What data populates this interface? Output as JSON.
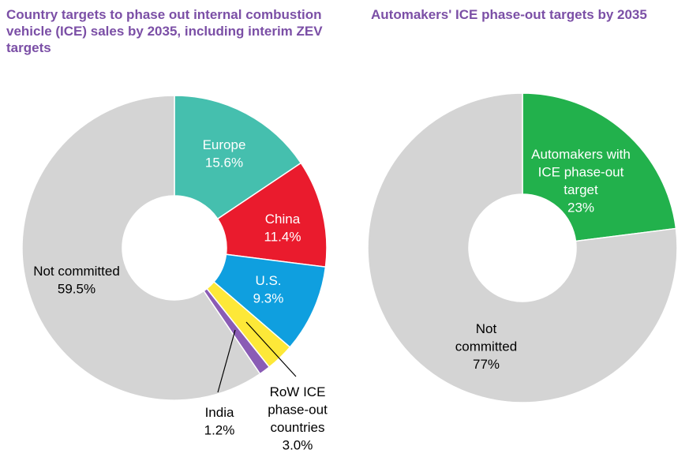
{
  "colors": {
    "title": "#7b4fa6",
    "europe": "#45bfae",
    "china": "#ea1b2d",
    "us": "#0f9fdf",
    "row": "#fde838",
    "india": "#8a5cb5",
    "not_committed": "#d4d4d4",
    "automakers": "#22b14c"
  },
  "chart_data": [
    {
      "type": "pie",
      "donut": true,
      "title": "Country targets to phase out internal combustion vehicle (ICE) sales by 2035, including interim ZEV targets",
      "slices": [
        {
          "key": "europe",
          "label_lines": [
            "Europe",
            "15.6%"
          ],
          "value": 15.6,
          "color": "#45bfae"
        },
        {
          "key": "china",
          "label_lines": [
            "China",
            "11.4%"
          ],
          "value": 11.4,
          "color": "#ea1b2d"
        },
        {
          "key": "us",
          "label_lines": [
            "U.S.",
            "9.3%"
          ],
          "value": 9.3,
          "color": "#0f9fdf"
        },
        {
          "key": "row",
          "label_lines": [
            "RoW ICE",
            "phase-out",
            "countries",
            "3.0%"
          ],
          "value": 3.0,
          "color": "#fde838"
        },
        {
          "key": "india",
          "label_lines": [
            "India",
            "1.2%"
          ],
          "value": 1.2,
          "color": "#8a5cb5"
        },
        {
          "key": "not-committed",
          "label_lines": [
            "Not committed",
            "59.5%"
          ],
          "value": 59.5,
          "color": "#d4d4d4"
        }
      ]
    },
    {
      "type": "pie",
      "donut": true,
      "title": "Automakers' ICE phase-out targets by 2035",
      "slices": [
        {
          "key": "automakers",
          "label_lines": [
            "Automakers with",
            "ICE phase-out",
            "target",
            "23%"
          ],
          "value": 23,
          "color": "#22b14c"
        },
        {
          "key": "not-committed",
          "label_lines": [
            "Not",
            "committed",
            "77%"
          ],
          "value": 77,
          "color": "#d4d4d4"
        }
      ]
    }
  ]
}
